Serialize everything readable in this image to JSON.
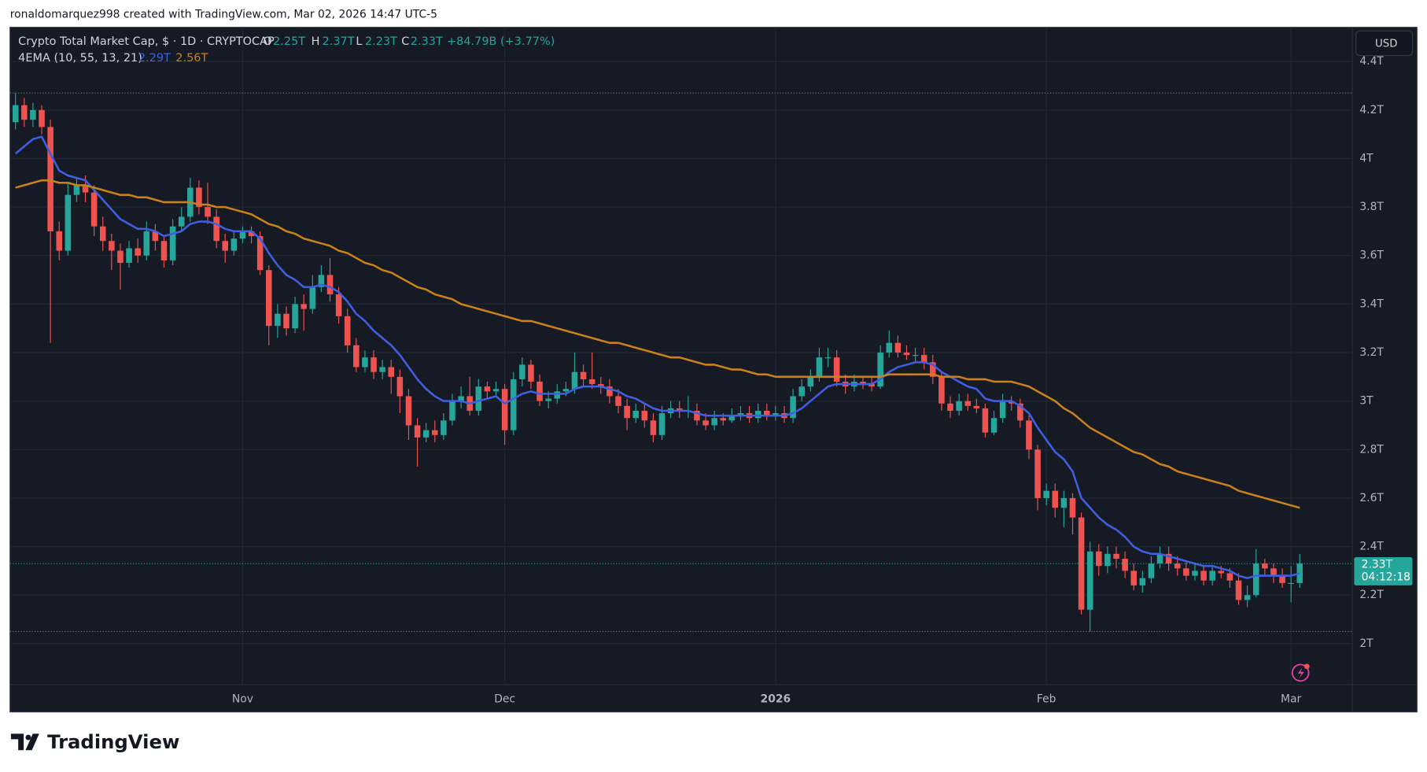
{
  "header_text": "ronaldomarquez998 created with TradingView.com, Mar 02, 2026 14:47 UTC-5",
  "footer_brand": "TradingView",
  "chart_data": {
    "type": "candlestick",
    "title": "Crypto Total Market Cap, $ · 1D · CRYPTOCAP",
    "ohlc_legend": [
      {
        "key": "O",
        "label": "2.25T"
      },
      {
        "key": "H",
        "label": "2.37T"
      },
      {
        "key": "L",
        "label": "2.23T"
      },
      {
        "key": "C",
        "label": "2.33T"
      }
    ],
    "change_label": "+84.79B (+3.77%)",
    "currency": "USD",
    "last_price_label": "2.33T",
    "countdown": "04:12:18",
    "up_color": "#26a69a",
    "down_color": "#ef5350",
    "grid": true,
    "open": [
      4.15,
      4.22,
      4.16,
      4.2,
      4.13,
      3.7,
      3.62,
      3.85,
      3.89,
      3.86,
      3.72,
      3.66,
      3.62,
      3.57,
      3.63,
      3.6,
      3.7,
      3.66,
      3.58,
      3.72,
      3.76,
      3.88,
      3.8,
      3.76,
      3.66,
      3.62,
      3.67,
      3.7,
      3.68,
      3.54,
      3.31,
      3.36,
      3.3,
      3.4,
      3.38,
      3.47,
      3.52,
      3.44,
      3.35,
      3.23,
      3.14,
      3.18,
      3.12,
      3.14,
      3.1,
      3.02,
      2.9,
      2.85,
      2.88,
      2.86,
      2.92,
      3.0,
      3.02,
      2.96,
      3.06,
      3.04,
      3.05,
      2.88,
      3.09,
      3.15,
      3.08,
      3.0,
      3.01,
      3.04,
      3.05,
      3.12,
      3.09,
      3.07,
      3.06,
      3.02,
      2.98,
      2.93,
      2.96,
      2.92,
      2.86,
      2.95,
      2.97,
      2.96,
      2.96,
      2.92,
      2.9,
      2.93,
      2.92,
      2.94,
      2.95,
      2.93,
      2.96,
      2.94,
      2.95,
      2.93,
      3.02,
      3.06,
      3.1,
      3.18,
      3.18,
      3.08,
      3.06,
      3.08,
      3.07,
      3.06,
      3.2,
      3.24,
      3.2,
      3.19,
      3.19,
      3.16,
      3.1,
      2.99,
      2.96,
      3.0,
      2.98,
      2.97,
      2.87,
      2.93,
      3.0,
      2.99,
      2.92,
      2.8,
      2.6,
      2.63,
      2.56,
      2.6,
      2.52,
      2.14,
      2.38,
      2.32,
      2.37,
      2.35,
      2.3,
      2.24,
      2.27,
      2.33,
      2.37,
      2.33,
      2.31,
      2.28,
      2.3,
      2.26,
      2.3,
      2.29,
      2.26,
      2.18,
      2.2,
      2.33,
      2.31,
      2.28,
      2.25,
      2.25
    ],
    "high": [
      4.27,
      4.25,
      4.23,
      4.22,
      4.16,
      3.74,
      3.9,
      3.92,
      3.93,
      3.89,
      3.76,
      3.69,
      3.65,
      3.66,
      3.67,
      3.74,
      3.73,
      3.68,
      3.75,
      3.8,
      3.92,
      3.91,
      3.9,
      3.79,
      3.69,
      3.7,
      3.72,
      3.72,
      3.7,
      3.56,
      3.4,
      3.39,
      3.43,
      3.44,
      3.52,
      3.56,
      3.59,
      3.47,
      3.38,
      3.26,
      3.21,
      3.21,
      3.17,
      3.17,
      3.13,
      3.05,
      2.93,
      2.91,
      2.92,
      2.95,
      3.03,
      3.06,
      3.1,
      3.09,
      3.08,
      3.08,
      3.07,
      3.12,
      3.18,
      3.17,
      3.11,
      3.04,
      3.07,
      3.08,
      3.2,
      3.15,
      3.2,
      3.1,
      3.09,
      3.05,
      3.01,
      2.99,
      2.99,
      2.95,
      2.98,
      3.0,
      3.0,
      3.02,
      2.99,
      2.95,
      2.96,
      2.95,
      2.97,
      2.98,
      2.98,
      2.99,
      2.99,
      2.98,
      2.98,
      3.05,
      3.09,
      3.13,
      3.22,
      3.22,
      3.21,
      3.11,
      3.11,
      3.1,
      3.1,
      3.23,
      3.29,
      3.27,
      3.23,
      3.22,
      3.22,
      3.19,
      3.12,
      3.02,
      3.03,
      3.03,
      3.01,
      2.99,
      2.96,
      3.03,
      3.02,
      3.01,
      2.94,
      2.82,
      2.66,
      2.66,
      2.63,
      2.62,
      2.54,
      2.42,
      2.41,
      2.4,
      2.4,
      2.38,
      2.33,
      2.3,
      2.36,
      2.4,
      2.4,
      2.36,
      2.34,
      2.33,
      2.32,
      2.32,
      2.32,
      2.31,
      2.29,
      2.24,
      2.39,
      2.35,
      2.33,
      2.31,
      2.32,
      2.37
    ],
    "low": [
      4.12,
      4.13,
      4.13,
      4.1,
      3.24,
      3.58,
      3.6,
      3.82,
      3.82,
      3.68,
      3.62,
      3.54,
      3.46,
      3.55,
      3.57,
      3.58,
      3.62,
      3.55,
      3.56,
      3.7,
      3.74,
      3.77,
      3.73,
      3.63,
      3.57,
      3.6,
      3.65,
      3.65,
      3.52,
      3.23,
      3.26,
      3.27,
      3.28,
      3.29,
      3.36,
      3.45,
      3.41,
      3.32,
      3.2,
      3.12,
      3.12,
      3.09,
      3.09,
      3.03,
      2.95,
      2.84,
      2.73,
      2.83,
      2.83,
      2.84,
      2.9,
      2.97,
      2.94,
      2.94,
      3.01,
      3.02,
      2.82,
      2.86,
      3.06,
      3.05,
      2.98,
      2.97,
      2.99,
      3.02,
      3.03,
      3.06,
      3.05,
      3.03,
      2.99,
      2.95,
      2.88,
      2.91,
      2.89,
      2.83,
      2.84,
      2.93,
      2.93,
      2.93,
      2.9,
      2.88,
      2.88,
      2.9,
      2.91,
      2.92,
      2.91,
      2.91,
      2.92,
      2.92,
      2.91,
      2.91,
      3.0,
      3.04,
      3.08,
      3.14,
      3.06,
      3.03,
      3.04,
      3.05,
      3.04,
      3.05,
      3.18,
      3.18,
      3.17,
      3.16,
      3.13,
      3.07,
      2.96,
      2.93,
      2.94,
      2.96,
      2.95,
      2.85,
      2.86,
      2.91,
      2.96,
      2.89,
      2.76,
      2.55,
      2.57,
      2.52,
      2.48,
      2.45,
      2.12,
      2.05,
      2.28,
      2.29,
      2.31,
      2.27,
      2.22,
      2.21,
      2.25,
      2.31,
      2.3,
      2.28,
      2.26,
      2.26,
      2.24,
      2.24,
      2.27,
      2.23,
      2.16,
      2.15,
      2.19,
      2.28,
      2.25,
      2.23,
      2.17,
      2.23
    ],
    "close": [
      4.22,
      4.16,
      4.2,
      4.13,
      3.7,
      3.62,
      3.85,
      3.89,
      3.86,
      3.72,
      3.66,
      3.62,
      3.57,
      3.63,
      3.6,
      3.7,
      3.66,
      3.58,
      3.72,
      3.76,
      3.88,
      3.8,
      3.76,
      3.66,
      3.62,
      3.67,
      3.7,
      3.68,
      3.54,
      3.31,
      3.36,
      3.3,
      3.4,
      3.38,
      3.47,
      3.52,
      3.44,
      3.35,
      3.23,
      3.14,
      3.18,
      3.12,
      3.14,
      3.1,
      3.02,
      2.9,
      2.85,
      2.88,
      2.86,
      2.92,
      3.0,
      3.02,
      2.96,
      3.06,
      3.04,
      3.05,
      2.88,
      3.09,
      3.15,
      3.08,
      3.0,
      3.01,
      3.04,
      3.05,
      3.12,
      3.09,
      3.07,
      3.06,
      3.02,
      2.98,
      2.93,
      2.96,
      2.92,
      2.86,
      2.95,
      2.97,
      2.96,
      2.96,
      2.92,
      2.9,
      2.93,
      2.92,
      2.94,
      2.95,
      2.93,
      2.96,
      2.94,
      2.95,
      2.93,
      3.02,
      3.06,
      3.1,
      3.18,
      3.18,
      3.08,
      3.06,
      3.08,
      3.07,
      3.06,
      3.2,
      3.24,
      3.2,
      3.19,
      3.19,
      3.16,
      3.1,
      2.99,
      2.96,
      3.0,
      2.98,
      2.97,
      2.87,
      2.93,
      3.0,
      2.99,
      2.92,
      2.8,
      2.6,
      2.63,
      2.56,
      2.6,
      2.52,
      2.14,
      2.38,
      2.32,
      2.37,
      2.35,
      2.3,
      2.24,
      2.27,
      2.33,
      2.37,
      2.33,
      2.31,
      2.28,
      2.3,
      2.26,
      2.3,
      2.29,
      2.26,
      2.18,
      2.2,
      2.33,
      2.31,
      2.28,
      2.25,
      2.25,
      2.33
    ],
    "indicator_name": "4EMA (10, 55, 13, 21)",
    "lines": [
      {
        "color": "#3f5fe0",
        "last_label": "2.29T",
        "values": [
          4.02,
          4.05,
          4.08,
          4.09,
          4.02,
          3.95,
          3.93,
          3.92,
          3.91,
          3.87,
          3.83,
          3.79,
          3.75,
          3.73,
          3.71,
          3.71,
          3.7,
          3.68,
          3.69,
          3.7,
          3.73,
          3.74,
          3.74,
          3.73,
          3.71,
          3.7,
          3.7,
          3.7,
          3.67,
          3.61,
          3.56,
          3.52,
          3.5,
          3.47,
          3.47,
          3.48,
          3.47,
          3.45,
          3.41,
          3.36,
          3.33,
          3.29,
          3.26,
          3.23,
          3.19,
          3.14,
          3.09,
          3.05,
          3.02,
          3.0,
          3.0,
          3.0,
          2.99,
          3.0,
          3.01,
          3.02,
          2.99,
          3.01,
          3.03,
          3.04,
          3.03,
          3.03,
          3.03,
          3.03,
          3.05,
          3.06,
          3.06,
          3.06,
          3.05,
          3.04,
          3.02,
          3.01,
          2.99,
          2.97,
          2.96,
          2.96,
          2.96,
          2.96,
          2.95,
          2.94,
          2.94,
          2.94,
          2.94,
          2.94,
          2.94,
          2.94,
          2.94,
          2.94,
          2.94,
          2.95,
          2.97,
          3.0,
          3.03,
          3.06,
          3.07,
          3.07,
          3.07,
          3.07,
          3.07,
          3.09,
          3.12,
          3.14,
          3.15,
          3.16,
          3.16,
          3.15,
          3.12,
          3.1,
          3.08,
          3.06,
          3.05,
          3.01,
          3.0,
          3.0,
          3.0,
          2.98,
          2.95,
          2.89,
          2.84,
          2.79,
          2.76,
          2.71,
          2.6,
          2.56,
          2.52,
          2.49,
          2.47,
          2.44,
          2.4,
          2.38,
          2.37,
          2.37,
          2.36,
          2.35,
          2.34,
          2.33,
          2.32,
          2.32,
          2.31,
          2.3,
          2.28,
          2.27,
          2.28,
          2.28,
          2.28,
          2.28,
          2.28,
          2.29
        ]
      },
      {
        "color": "#c9811c",
        "last_label": "2.56T",
        "values": [
          3.88,
          3.89,
          3.9,
          3.91,
          3.91,
          3.9,
          3.9,
          3.89,
          3.89,
          3.88,
          3.87,
          3.86,
          3.85,
          3.85,
          3.84,
          3.84,
          3.83,
          3.82,
          3.82,
          3.82,
          3.82,
          3.81,
          3.81,
          3.8,
          3.8,
          3.79,
          3.78,
          3.77,
          3.75,
          3.73,
          3.72,
          3.7,
          3.69,
          3.67,
          3.66,
          3.65,
          3.64,
          3.62,
          3.61,
          3.59,
          3.57,
          3.56,
          3.54,
          3.53,
          3.51,
          3.49,
          3.47,
          3.46,
          3.44,
          3.43,
          3.42,
          3.4,
          3.39,
          3.38,
          3.37,
          3.36,
          3.35,
          3.34,
          3.33,
          3.33,
          3.32,
          3.31,
          3.3,
          3.29,
          3.28,
          3.27,
          3.26,
          3.25,
          3.24,
          3.24,
          3.23,
          3.22,
          3.21,
          3.2,
          3.19,
          3.18,
          3.18,
          3.17,
          3.16,
          3.15,
          3.15,
          3.14,
          3.13,
          3.13,
          3.12,
          3.11,
          3.11,
          3.1,
          3.1,
          3.1,
          3.1,
          3.1,
          3.1,
          3.1,
          3.1,
          3.1,
          3.1,
          3.1,
          3.1,
          3.1,
          3.11,
          3.11,
          3.11,
          3.11,
          3.11,
          3.11,
          3.1,
          3.1,
          3.1,
          3.09,
          3.09,
          3.09,
          3.08,
          3.08,
          3.08,
          3.07,
          3.06,
          3.04,
          3.02,
          3.0,
          2.97,
          2.95,
          2.92,
          2.89,
          2.87,
          2.85,
          2.83,
          2.81,
          2.79,
          2.78,
          2.76,
          2.74,
          2.73,
          2.71,
          2.7,
          2.69,
          2.68,
          2.67,
          2.66,
          2.65,
          2.63,
          2.62,
          2.61,
          2.6,
          2.59,
          2.58,
          2.57,
          2.56
        ]
      }
    ],
    "xlim": [
      -0.625,
      153.02
    ],
    "xticks": [
      {
        "value": 26,
        "label": "Nov"
      },
      {
        "value": 56,
        "label": "Dec"
      },
      {
        "value": 87,
        "label": "2026"
      },
      {
        "value": 118,
        "label": "Feb"
      },
      {
        "value": 146,
        "label": "Mar"
      }
    ],
    "ylim": [
      1.831,
      4.541
    ],
    "yticks": [
      {
        "value": 2,
        "label": "2T"
      },
      {
        "value": 2.2,
        "label": "2.2T"
      },
      {
        "value": 2.4,
        "label": "2.4T"
      },
      {
        "value": 2.6,
        "label": "2.6T"
      },
      {
        "value": 2.8,
        "label": "2.8T"
      },
      {
        "value": 3,
        "label": "3T"
      },
      {
        "value": 3.2,
        "label": "3.2T"
      },
      {
        "value": 3.4,
        "label": "3.4T"
      },
      {
        "value": 3.6,
        "label": "3.6T"
      },
      {
        "value": 3.8,
        "label": "3.8T"
      },
      {
        "value": 4,
        "label": "4T"
      },
      {
        "value": 4.2,
        "label": "4.2T"
      },
      {
        "value": 4.4,
        "label": "4.4T"
      }
    ]
  }
}
